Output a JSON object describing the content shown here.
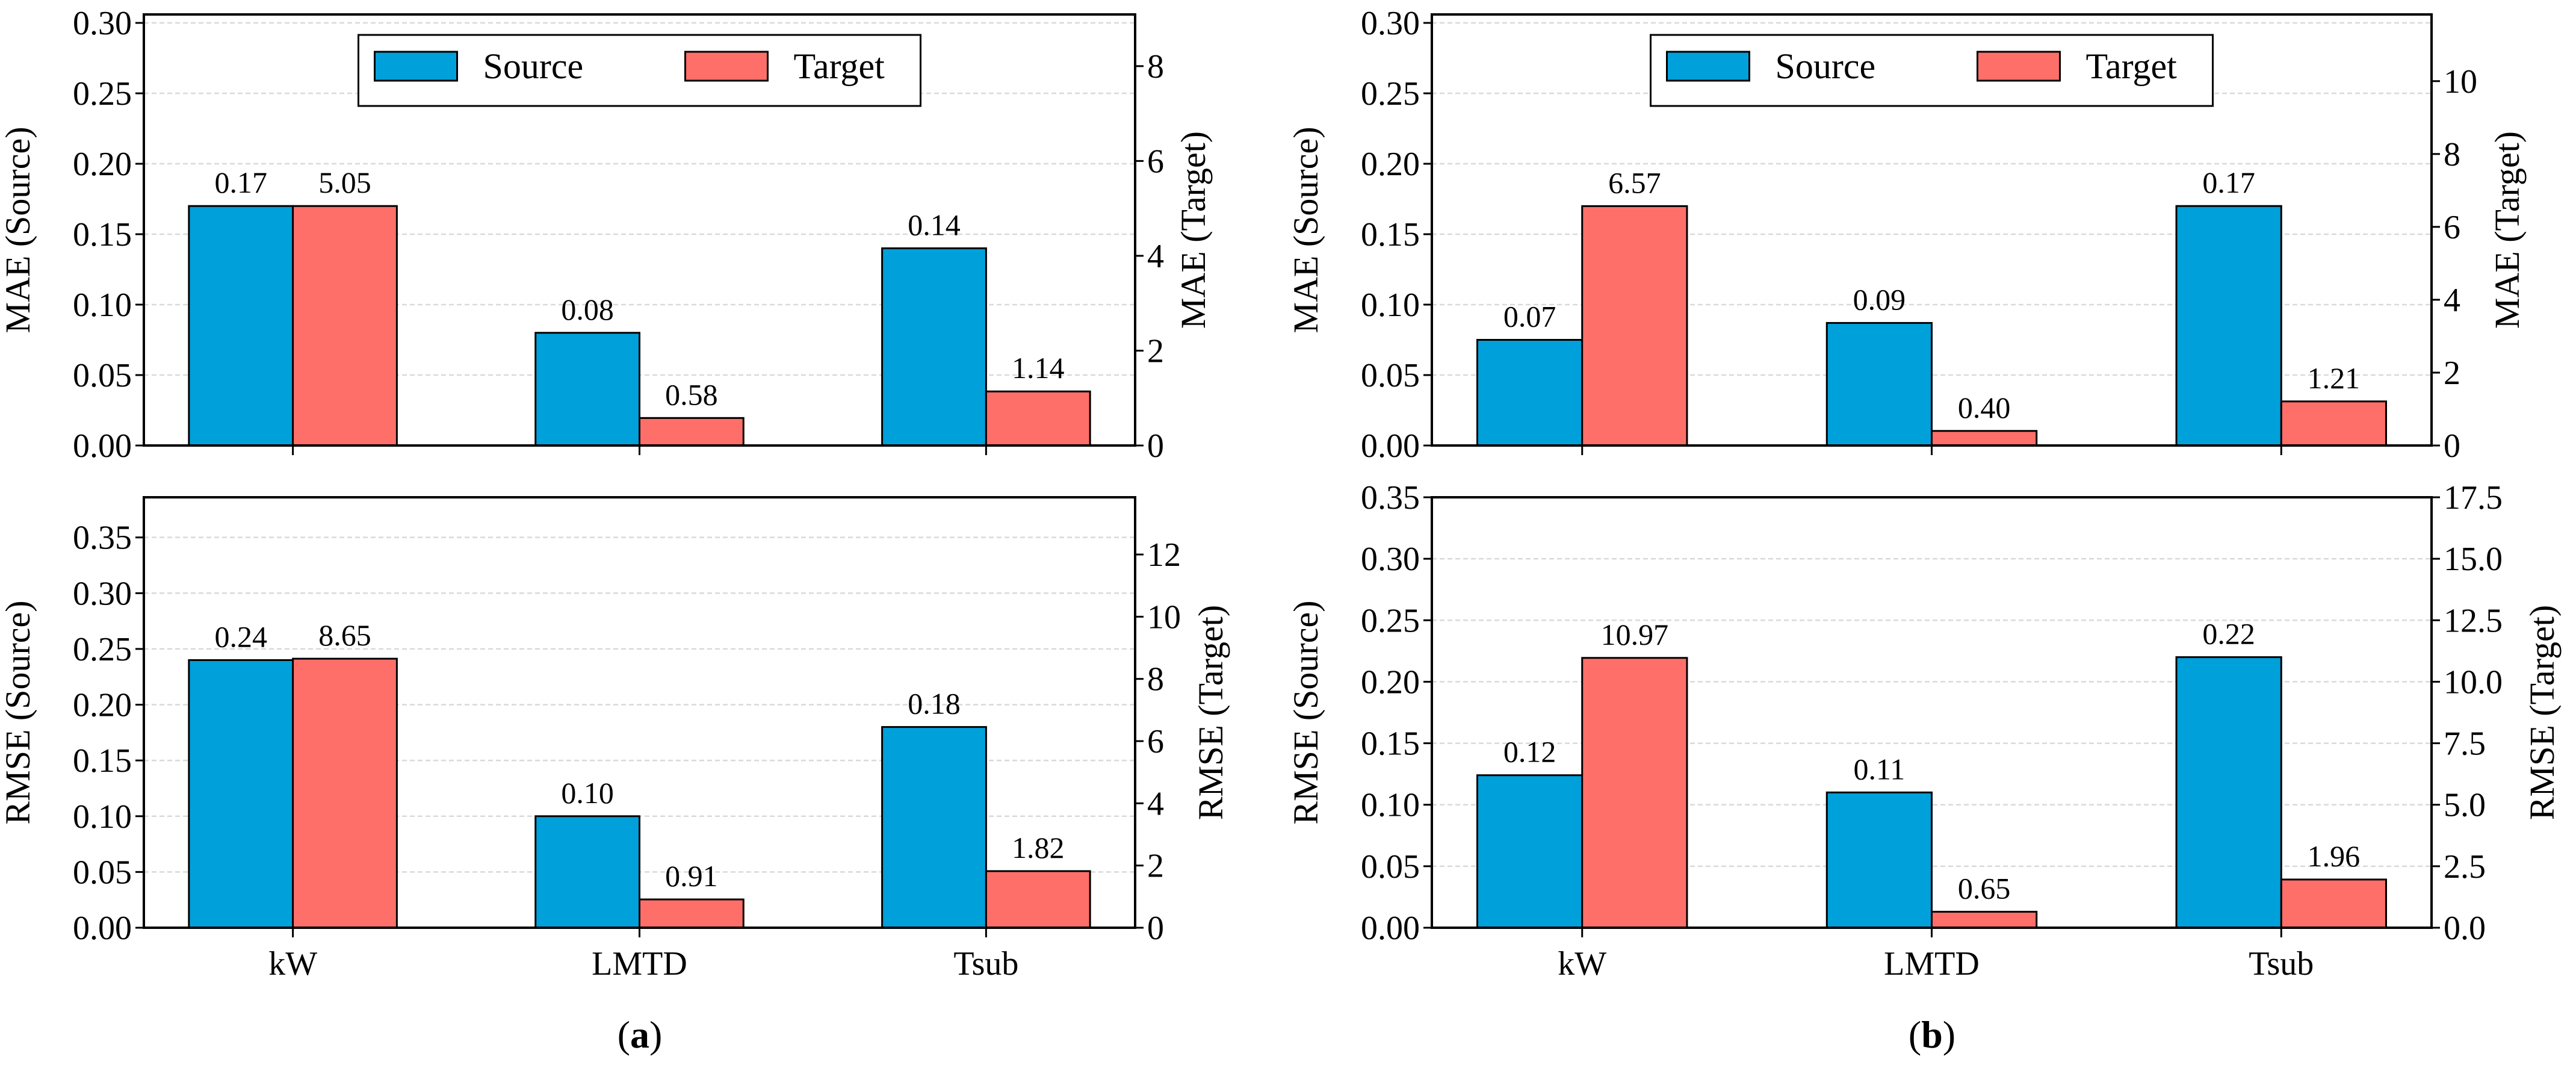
{
  "colors": {
    "source": "#00A0DA",
    "target": "#FF6F69",
    "grid": "#d9d9d9"
  },
  "legend": {
    "source": "Source",
    "target": "Target"
  },
  "panel_labels": {
    "a_open": "(",
    "a": "a",
    "a_close": ")",
    "b_open": "(",
    "b": "b",
    "b_close": ")"
  },
  "chart_data": [
    {
      "type": "bar",
      "panel": "a",
      "row": "top",
      "categories": [
        "kW",
        "LMTD",
        "Tsub"
      ],
      "ylabel": "MAE (Source)",
      "ylabel_right": "MAE (Target)",
      "series": [
        {
          "name": "Source",
          "axis": "left",
          "values": [
            0.17,
            0.08,
            0.14
          ],
          "labels": [
            "0.17",
            "0.08",
            "0.14"
          ]
        },
        {
          "name": "Target",
          "axis": "right",
          "values": [
            5.05,
            0.58,
            1.14
          ],
          "labels": [
            "5.05",
            "0.58",
            "1.14"
          ]
        }
      ],
      "ylim": [
        0,
        0.306
      ],
      "ylim_right": [
        0,
        9.09
      ],
      "yticks": [
        "0.00",
        "0.05",
        "0.10",
        "0.15",
        "0.20",
        "0.25",
        "0.30"
      ],
      "yticks_right": [
        "0",
        "2",
        "4",
        "6",
        "8"
      ],
      "grid": true,
      "legend": "upper-center",
      "show_xticks": false
    },
    {
      "type": "bar",
      "panel": "a",
      "row": "bottom",
      "categories": [
        "kW",
        "LMTD",
        "Tsub"
      ],
      "ylabel": "RMSE (Source)",
      "ylabel_right": "RMSE (Target)",
      "series": [
        {
          "name": "Source",
          "axis": "left",
          "values": [
            0.24,
            0.1,
            0.18
          ],
          "labels": [
            "0.24",
            "0.10",
            "0.18"
          ]
        },
        {
          "name": "Target",
          "axis": "right",
          "values": [
            8.65,
            0.91,
            1.82
          ],
          "labels": [
            "8.65",
            "0.91",
            "1.82"
          ]
        }
      ],
      "ylim": [
        0,
        0.386
      ],
      "ylim_right": [
        0,
        13.84
      ],
      "yticks": [
        "0.00",
        "0.05",
        "0.10",
        "0.15",
        "0.20",
        "0.25",
        "0.30",
        "0.35"
      ],
      "yticks_right": [
        "0",
        "2",
        "4",
        "6",
        "8",
        "10",
        "12"
      ],
      "grid": true,
      "legend": "none",
      "show_xticks": true
    },
    {
      "type": "bar",
      "panel": "b",
      "row": "top",
      "categories": [
        "kW",
        "LMTD",
        "Tsub"
      ],
      "ylabel": "MAE (Source)",
      "ylabel_right": "MAE (Target)",
      "series": [
        {
          "name": "Source",
          "axis": "left",
          "values": [
            0.075,
            0.087,
            0.17
          ],
          "labels": [
            "0.07",
            "0.09",
            "0.17"
          ]
        },
        {
          "name": "Target",
          "axis": "right",
          "values": [
            6.57,
            0.4,
            1.21
          ],
          "labels": [
            "6.57",
            "0.40",
            "1.21"
          ]
        }
      ],
      "ylim": [
        0,
        0.306
      ],
      "ylim_right": [
        0,
        11.83
      ],
      "yticks": [
        "0.00",
        "0.05",
        "0.10",
        "0.15",
        "0.20",
        "0.25",
        "0.30"
      ],
      "yticks_right": [
        "0",
        "2",
        "4",
        "6",
        "8",
        "10"
      ],
      "grid": true,
      "legend": "upper-center",
      "show_xticks": false
    },
    {
      "type": "bar",
      "panel": "b",
      "row": "bottom",
      "categories": [
        "kW",
        "LMTD",
        "Tsub"
      ],
      "ylabel": "RMSE (Source)",
      "ylabel_right": "RMSE (Target)",
      "series": [
        {
          "name": "Source",
          "axis": "left",
          "values": [
            0.124,
            0.11,
            0.22
          ],
          "labels": [
            "0.12",
            "0.11",
            "0.22"
          ]
        },
        {
          "name": "Target",
          "axis": "right",
          "values": [
            10.97,
            0.65,
            1.96
          ],
          "labels": [
            "10.97",
            "0.65",
            "1.96"
          ]
        }
      ],
      "ylim": [
        0,
        0.35
      ],
      "ylim_right": [
        0,
        17.5
      ],
      "yticks": [
        "0.00",
        "0.05",
        "0.10",
        "0.15",
        "0.20",
        "0.25",
        "0.30",
        "0.35"
      ],
      "yticks_right": [
        "0.0",
        "2.5",
        "5.0",
        "7.5",
        "10.0",
        "12.5",
        "15.0",
        "17.5"
      ],
      "grid": true,
      "legend": "none",
      "show_xticks": true
    }
  ]
}
